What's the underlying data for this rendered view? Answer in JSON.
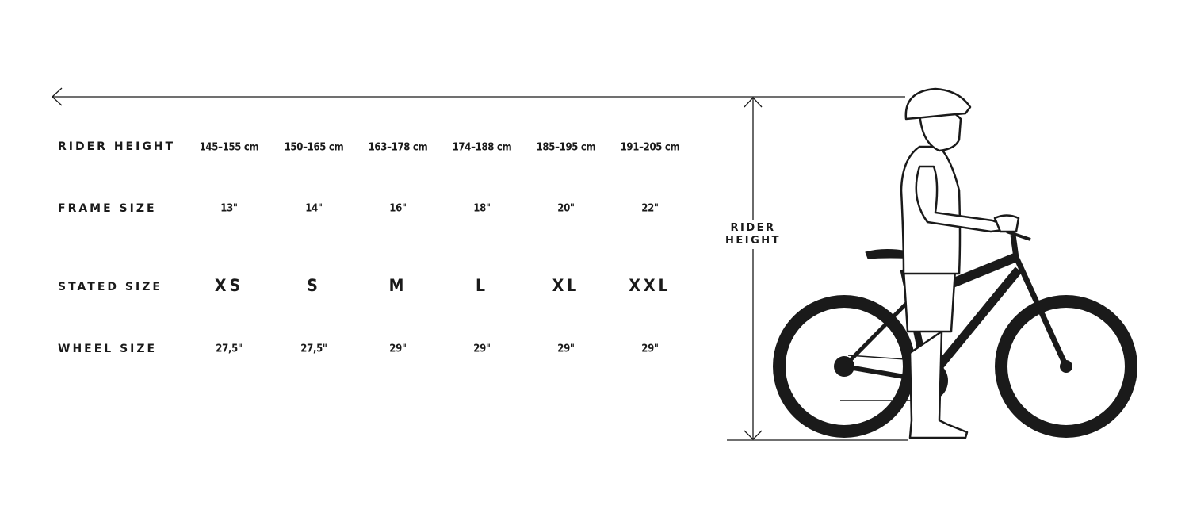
{
  "rows": [
    {
      "label": "RIDER HEIGHT",
      "values": [
        "145–155 cm",
        "150–165 cm",
        "163–178 cm",
        "174–188 cm",
        "185–195 cm",
        "191–205 cm"
      ]
    },
    {
      "label": "FRAME SIZE",
      "values": [
        "13\"",
        "14\"",
        "16\"",
        "18\"",
        "20\"",
        "22\""
      ]
    },
    {
      "label": "STATED SIZE",
      "values": [
        "XS",
        "S",
        "M",
        "L",
        "XL",
        "XXL"
      ]
    },
    {
      "label": "WHEEL SIZE",
      "values": [
        "27,5\"",
        "27,5\"",
        "29\"",
        "29\"",
        "29\"",
        "29\""
      ]
    }
  ],
  "illustration": {
    "height_label_line1": "RIDER",
    "height_label_line2": "HEIGHT",
    "icons": [
      "arrow-left-icon",
      "rider-with-bike-illustration"
    ]
  }
}
